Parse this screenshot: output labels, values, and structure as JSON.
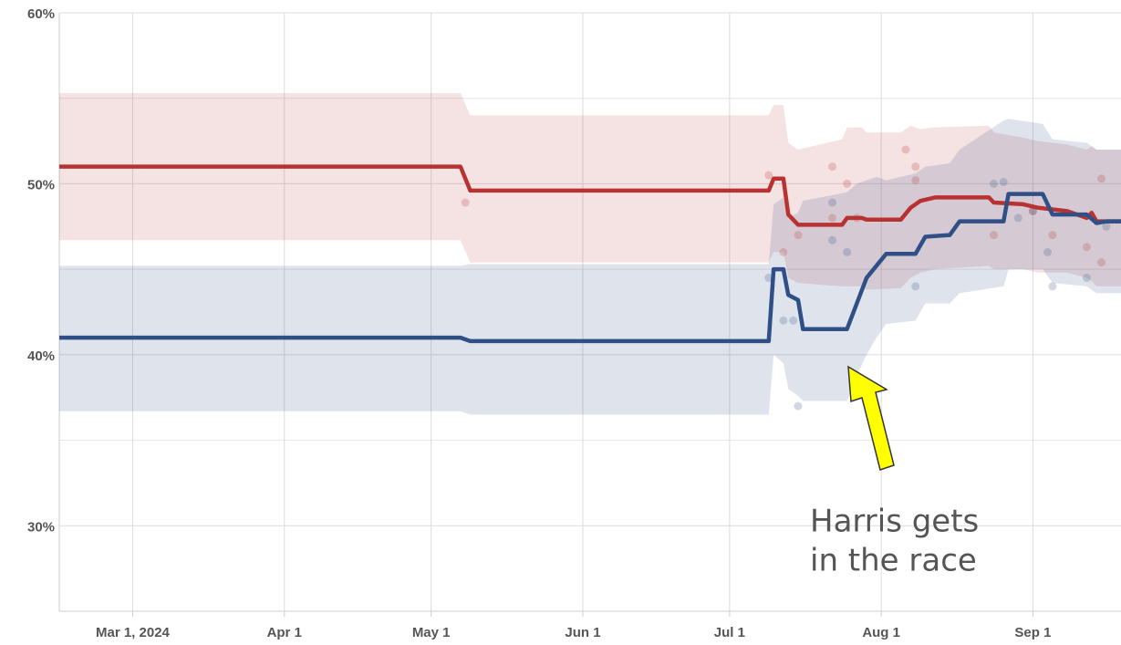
{
  "chart_data": {
    "type": "line",
    "xlim": [
      "2024-02-15",
      "2024-09-19"
    ],
    "xticks": [
      {
        "value": "2024-03-01",
        "label": "Mar 1, 2024"
      },
      {
        "value": "2024-04-01",
        "label": "Apr 1"
      },
      {
        "value": "2024-05-01",
        "label": "May 1"
      },
      {
        "value": "2024-06-01",
        "label": "Jun 1"
      },
      {
        "value": "2024-07-01",
        "label": "Jul 1"
      },
      {
        "value": "2024-08-01",
        "label": "Aug 1"
      },
      {
        "value": "2024-09-01",
        "label": "Sep 1"
      }
    ],
    "ylim": [
      25,
      60
    ],
    "yticks": [
      {
        "value": 30,
        "label": "30%"
      },
      {
        "value": 40,
        "label": "40%"
      },
      {
        "value": 50,
        "label": "50%"
      },
      {
        "value": 60,
        "label": "60%"
      }
    ],
    "minor_yticks": [
      35,
      45,
      55
    ],
    "grid": true,
    "series": [
      {
        "color": "#b83232",
        "x": [
          "2024-02-15",
          "2024-05-07",
          "2024-05-09",
          "2024-07-09",
          "2024-07-10",
          "2024-07-12",
          "2024-07-13",
          "2024-07-15",
          "2024-07-24",
          "2024-07-25",
          "2024-07-28",
          "2024-07-29",
          "2024-08-05",
          "2024-08-07",
          "2024-08-09",
          "2024-08-12",
          "2024-08-23",
          "2024-08-24",
          "2024-08-30",
          "2024-09-02",
          "2024-09-08",
          "2024-09-12",
          "2024-09-13",
          "2024-09-14",
          "2024-09-19"
        ],
        "values": [
          51,
          51,
          49.6,
          49.6,
          50.3,
          50.3,
          48.2,
          47.6,
          47.6,
          48,
          48,
          47.9,
          47.9,
          48.6,
          49,
          49.2,
          49.2,
          48.9,
          48.8,
          48.6,
          48.4,
          48,
          48.3,
          47.8,
          47.8
        ],
        "lower": [
          46.7,
          46.7,
          45.4,
          45.4,
          46,
          46,
          44.5,
          44.2,
          44,
          44,
          44,
          43.8,
          43.9,
          44.5,
          44.8,
          45,
          45.2,
          45,
          45,
          44.8,
          44.8,
          44.5,
          44.3,
          44,
          44
        ],
        "upper": [
          55.3,
          55.3,
          54,
          54,
          54.6,
          54.6,
          52.4,
          52,
          52.6,
          53.3,
          53.3,
          53,
          53,
          53.4,
          53.2,
          53.3,
          53.4,
          53,
          52.7,
          52.5,
          52.3,
          52,
          52.2,
          52,
          52
        ],
        "points": {
          "x": [
            "2024-05-08",
            "2024-07-09",
            "2024-07-12",
            "2024-07-15",
            "2024-07-22",
            "2024-07-22",
            "2024-07-25",
            "2024-07-27",
            "2024-08-06",
            "2024-08-08",
            "2024-08-08",
            "2024-08-24",
            "2024-09-01",
            "2024-09-05",
            "2024-09-12",
            "2024-09-15",
            "2024-09-15"
          ],
          "values": [
            48.9,
            50.5,
            46,
            47,
            51,
            48,
            50,
            48,
            52,
            51,
            50.2,
            47,
            48.4,
            47,
            46.3,
            50.3,
            45.4
          ]
        }
      },
      {
        "color": "#2f4f86",
        "x": [
          "2024-02-15",
          "2024-05-07",
          "2024-05-09",
          "2024-07-09",
          "2024-07-10",
          "2024-07-12",
          "2024-07-13",
          "2024-07-15",
          "2024-07-16",
          "2024-07-25",
          "2024-07-27",
          "2024-07-29",
          "2024-07-31",
          "2024-08-02",
          "2024-08-08",
          "2024-08-10",
          "2024-08-15",
          "2024-08-17",
          "2024-08-26",
          "2024-08-27",
          "2024-09-03",
          "2024-09-05",
          "2024-09-12",
          "2024-09-14",
          "2024-09-16",
          "2024-09-19"
        ],
        "values": [
          41,
          41,
          40.8,
          40.8,
          45,
          45,
          43.5,
          43.2,
          41.5,
          41.5,
          43,
          44.5,
          45.2,
          45.9,
          45.9,
          46.9,
          47,
          47.8,
          47.8,
          49.4,
          49.4,
          48.2,
          48.2,
          47.7,
          47.8,
          47.8
        ],
        "lower": [
          36.7,
          36.7,
          36.5,
          36.5,
          40,
          39.5,
          38,
          37.6,
          37.3,
          37.3,
          38.8,
          40,
          41,
          41.8,
          42,
          43,
          43,
          43.6,
          44,
          45,
          45,
          44.2,
          44,
          43.6,
          43.6,
          43.6
        ],
        "upper": [
          45.2,
          45.2,
          45.3,
          45.3,
          48.8,
          49.2,
          48,
          48.3,
          49,
          49.5,
          50,
          50.2,
          50.4,
          50.2,
          50.6,
          51,
          51.2,
          52,
          53.7,
          53.8,
          53.5,
          52.6,
          52.4,
          52,
          52,
          52
        ],
        "points": {
          "x": [
            "2024-07-09",
            "2024-07-12",
            "2024-07-14",
            "2024-07-15",
            "2024-07-22",
            "2024-07-22",
            "2024-07-25",
            "2024-08-08",
            "2024-08-24",
            "2024-08-26",
            "2024-08-29",
            "2024-09-01",
            "2024-09-04",
            "2024-09-05",
            "2024-09-12",
            "2024-09-16"
          ],
          "values": [
            44.5,
            42,
            42,
            37,
            48.9,
            46.7,
            46,
            44,
            50,
            50.1,
            48,
            48.4,
            46,
            44,
            44.5,
            47.5
          ]
        }
      }
    ],
    "annotation": {
      "lines": [
        "Harris gets",
        "in the race"
      ]
    }
  }
}
